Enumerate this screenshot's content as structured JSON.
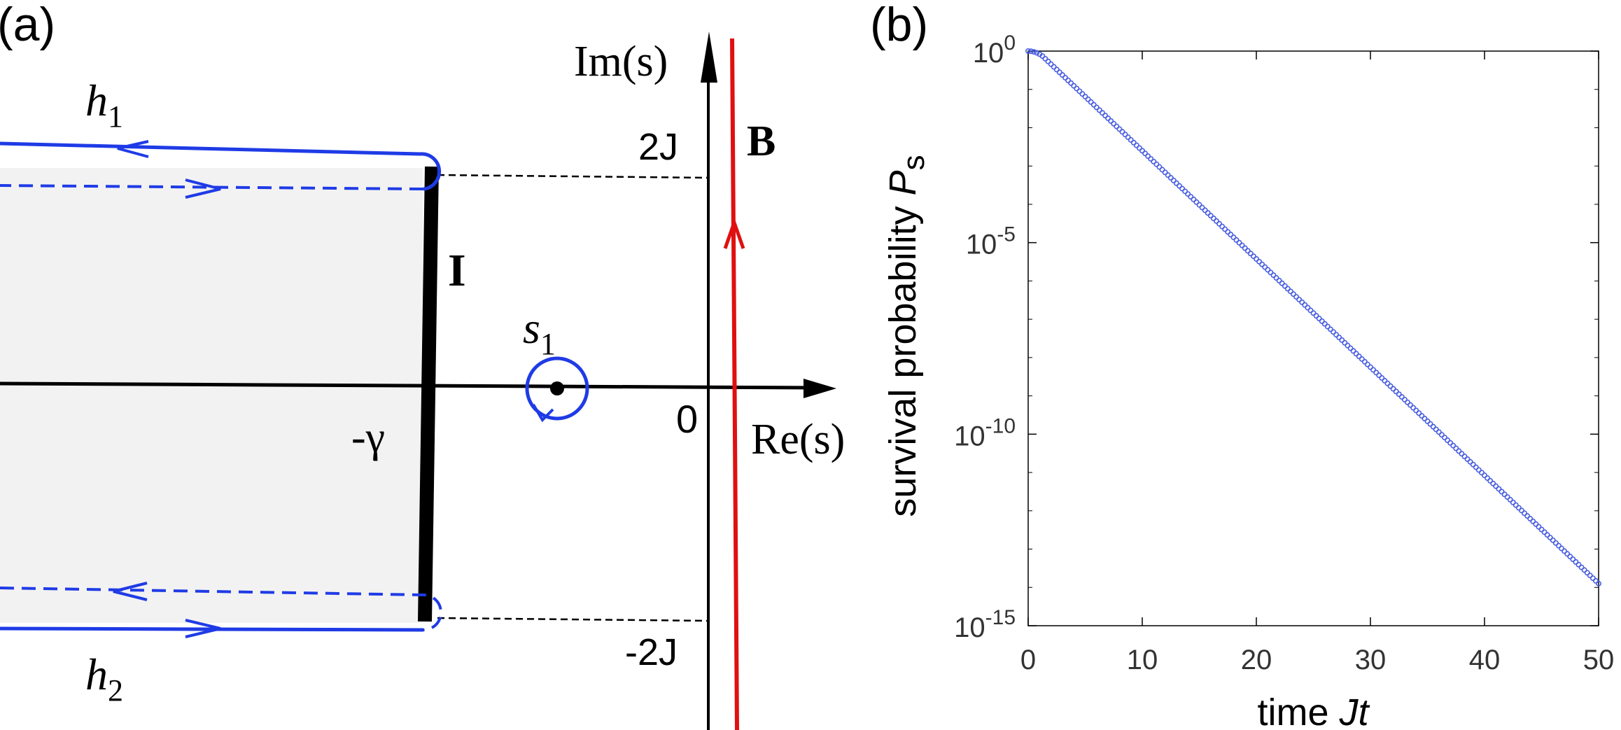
{
  "panel_a": {
    "label": "(a)",
    "axis_im_label": "Im(s)",
    "axis_re_label": "Re(s)",
    "origin_label": "0",
    "tick_top": "2J",
    "tick_bottom": "-2J",
    "branch_I": "I",
    "branch_B": "B",
    "h1": {
      "base": "h",
      "sub": "1"
    },
    "h2": {
      "base": "h",
      "sub": "2"
    },
    "s1": {
      "base": "s",
      "sub": "1"
    },
    "gamma": "-γ",
    "colors": {
      "contour": "#1f3be6",
      "branch_B": "#e01010",
      "shading": "#f2f2f2",
      "axis": "#000000"
    }
  },
  "panel_b": {
    "label": "(b)",
    "chart_data": {
      "type": "scatter",
      "xlabel_text": "time ",
      "xlabel_var": "Jt",
      "ylabel_text": "survival probability ",
      "ylabel_var": "P",
      "ylabel_sub": "s",
      "xlim": [
        0,
        50
      ],
      "ylim_log10": [
        -15,
        0
      ],
      "yscale": "log",
      "xticks": [
        0,
        10,
        20,
        30,
        40,
        50
      ],
      "yticks": [
        {
          "base": "10",
          "exp": "0",
          "log10": 0
        },
        {
          "base": "10",
          "exp": "-5",
          "log10": -5
        },
        {
          "base": "10",
          "exp": "-10",
          "log10": -10
        },
        {
          "base": "10",
          "exp": "-15",
          "log10": -15
        }
      ],
      "series": [
        {
          "x_start": 0,
          "x_end": 50,
          "x_step": 0.25,
          "log10_y_at_start": 0,
          "log10_y_at_end": -13.9,
          "color": "#4a5fe0",
          "marker": "circle"
        }
      ],
      "grid": false
    }
  }
}
